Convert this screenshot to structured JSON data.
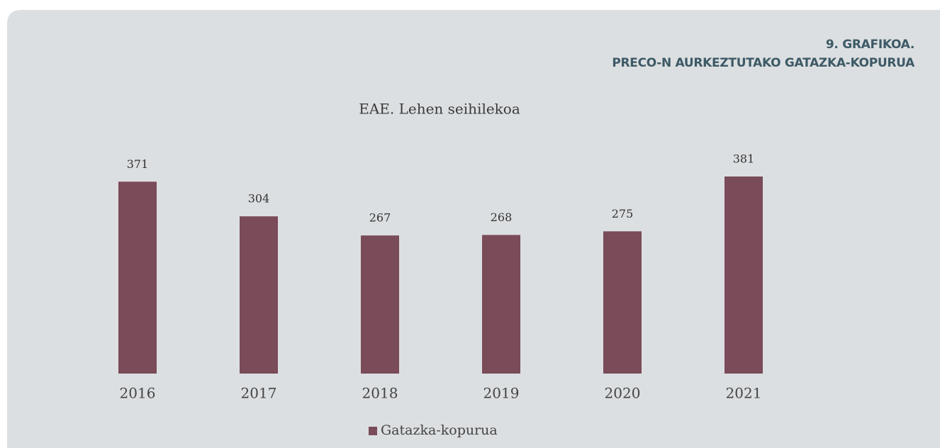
{
  "chart_data": {
    "type": "bar",
    "title": "9. GRAFIKOA.",
    "subtitle": "PRECO-N AURKEZTUTAKO GATAZKA-KOPURUA",
    "caption": "EAE. Lehen seihilekoa",
    "categories": [
      "2016",
      "2017",
      "2018",
      "2019",
      "2020",
      "2021"
    ],
    "series": [
      {
        "name": "Gatazka-kopurua",
        "color": "#7a4b58",
        "values": [
          371,
          304,
          267,
          268,
          275,
          381
        ]
      }
    ],
    "legend": "bottom"
  }
}
